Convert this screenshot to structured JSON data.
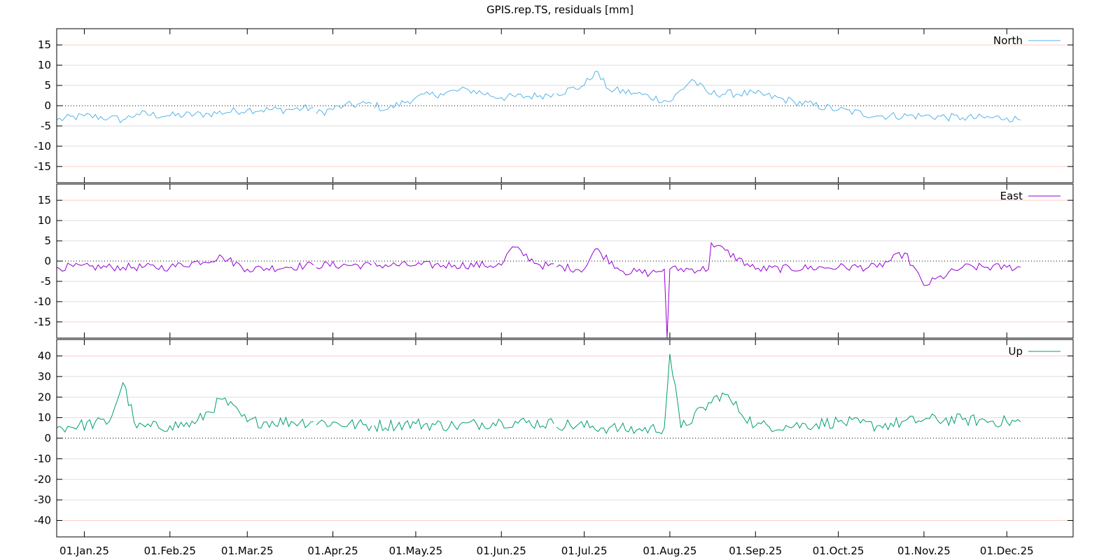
{
  "title": "GPIS.rep.TS, residuals [mm]",
  "chart_data": [
    {
      "type": "line",
      "name": "North",
      "series": [
        {
          "name": "North",
          "color": "#56b4e9"
        }
      ],
      "ylim": [
        -19,
        19
      ],
      "yticks": [
        15,
        10,
        5,
        0,
        -5,
        -10,
        -15
      ],
      "ytick_labels": [
        "15",
        "10",
        "5",
        "0",
        "-5",
        "-10",
        "-15"
      ],
      "red_grid": [
        15,
        -15
      ],
      "grey_grid": [
        10,
        5,
        -5,
        -10
      ],
      "key": [
        [
          "2024-12-22",
          -3.5
        ],
        [
          "2025-01-01",
          -2.5
        ],
        [
          "2025-01-10",
          -3.0
        ],
        [
          "2025-01-15",
          -3.5
        ],
        [
          "2025-01-20",
          -2.0
        ],
        [
          "2025-02-01",
          -2.5
        ],
        [
          "2025-02-15",
          -2.0
        ],
        [
          "2025-03-01",
          -1.0
        ],
        [
          "2025-03-15",
          -1.0
        ],
        [
          "2025-03-25",
          -0.5
        ],
        [
          "2025-03-26",
          -2.0
        ],
        [
          "2025-04-05",
          0.0
        ],
        [
          "2025-04-15",
          0.5
        ],
        [
          "2025-04-20",
          -1.0
        ],
        [
          "2025-05-01",
          2.0
        ],
        [
          "2025-05-10",
          3.0
        ],
        [
          "2025-05-20",
          4.0
        ],
        [
          "2025-06-01",
          2.0
        ],
        [
          "2025-06-15",
          2.5
        ],
        [
          "2025-06-20",
          3.0
        ],
        [
          "2025-06-21",
          3.0
        ],
        [
          "2025-07-01",
          5.0
        ],
        [
          "2025-07-05",
          8.5
        ],
        [
          "2025-07-10",
          4.0
        ],
        [
          "2025-07-20",
          3.0
        ],
        [
          "2025-08-01",
          1.0
        ],
        [
          "2025-08-09",
          6.5
        ],
        [
          "2025-08-15",
          3.0
        ],
        [
          "2025-09-01",
          3.0
        ],
        [
          "2025-09-15",
          1.0
        ],
        [
          "2025-10-01",
          -1.0
        ],
        [
          "2025-10-15",
          -2.5
        ],
        [
          "2025-11-01",
          -2.5
        ],
        [
          "2025-11-15",
          -3.0
        ],
        [
          "2025-12-01",
          -3.0
        ],
        [
          "2025-12-06",
          -3.5
        ]
      ],
      "gaps": [
        "2025-03-26",
        "2025-04-16",
        "2025-06-21"
      ]
    },
    {
      "type": "line",
      "name": "East",
      "series": [
        {
          "name": "East",
          "color": "#9400d3"
        }
      ],
      "ylim": [
        -19,
        19
      ],
      "yticks": [
        15,
        10,
        5,
        0,
        -5,
        -10,
        -15
      ],
      "ytick_labels": [
        "15",
        "10",
        "5",
        "0",
        "-5",
        "-10",
        "-15"
      ],
      "red_grid": [
        15,
        -15
      ],
      "grey_grid": [
        10,
        5,
        -5,
        -10
      ],
      "key": [
        [
          "2024-12-22",
          -1.5
        ],
        [
          "2025-01-15",
          -1.5
        ],
        [
          "2025-02-01",
          -1.5
        ],
        [
          "2025-02-20",
          1.0
        ],
        [
          "2025-03-01",
          -2.0
        ],
        [
          "2025-03-15",
          -1.5
        ],
        [
          "2025-03-25",
          -1.0
        ],
        [
          "2025-04-15",
          -1.0
        ],
        [
          "2025-05-01",
          -1.0
        ],
        [
          "2025-05-15",
          -1.0
        ],
        [
          "2025-06-01",
          -1.0
        ],
        [
          "2025-06-05",
          3.5
        ],
        [
          "2025-06-15",
          -1.0
        ],
        [
          "2025-07-01",
          -2.0
        ],
        [
          "2025-07-05",
          3.0
        ],
        [
          "2025-07-15",
          -2.5
        ],
        [
          "2025-07-25",
          -3.0
        ],
        [
          "2025-07-30",
          -2.0
        ],
        [
          "2025-07-31",
          -19.0
        ],
        [
          "2025-08-01",
          -2.0
        ],
        [
          "2025-08-15",
          -2.0
        ],
        [
          "2025-08-16",
          4.5
        ],
        [
          "2025-09-01",
          -2.0
        ],
        [
          "2025-10-01",
          -1.5
        ],
        [
          "2025-10-15",
          -1.5
        ],
        [
          "2025-10-25",
          2.0
        ],
        [
          "2025-11-01",
          -6.0
        ],
        [
          "2025-11-15",
          -1.5
        ],
        [
          "2025-12-01",
          -1.5
        ],
        [
          "2025-12-06",
          -1.5
        ]
      ],
      "gaps": [
        "2025-03-26",
        "2025-04-16",
        "2025-06-21"
      ]
    },
    {
      "type": "line",
      "name": "Up",
      "series": [
        {
          "name": "Up",
          "color": "#009e73"
        }
      ],
      "ylim": [
        -48,
        48
      ],
      "yticks": [
        40,
        30,
        20,
        10,
        0,
        -10,
        -20,
        -30,
        -40
      ],
      "ytick_labels": [
        "40",
        "30",
        "20",
        "10",
        "0",
        "-10",
        "-20",
        "-30",
        "-40"
      ],
      "red_grid": [
        40,
        -40
      ],
      "grey_grid": [
        30,
        20,
        10,
        -10,
        -20,
        -30
      ],
      "key": [
        [
          "2024-12-22",
          5
        ],
        [
          "2025-01-10",
          8
        ],
        [
          "2025-01-15",
          27
        ],
        [
          "2025-01-20",
          5
        ],
        [
          "2025-02-01",
          6
        ],
        [
          "2025-02-10",
          7
        ],
        [
          "2025-02-20",
          19
        ],
        [
          "2025-03-01",
          8
        ],
        [
          "2025-03-25",
          8
        ],
        [
          "2025-04-15",
          6
        ],
        [
          "2025-05-01",
          7
        ],
        [
          "2025-05-15",
          6
        ],
        [
          "2025-06-01",
          8
        ],
        [
          "2025-06-20",
          7
        ],
        [
          "2025-07-10",
          5
        ],
        [
          "2025-07-20",
          4
        ],
        [
          "2025-07-30",
          5
        ],
        [
          "2025-08-01",
          41
        ],
        [
          "2025-08-05",
          5
        ],
        [
          "2025-08-20",
          22
        ],
        [
          "2025-09-01",
          6
        ],
        [
          "2025-09-15",
          6
        ],
        [
          "2025-10-01",
          8
        ],
        [
          "2025-10-15",
          6
        ],
        [
          "2025-11-01",
          9
        ],
        [
          "2025-11-15",
          9
        ],
        [
          "2025-12-01",
          8
        ],
        [
          "2025-12-06",
          8
        ]
      ],
      "gaps": [
        "2025-03-26",
        "2025-04-16",
        "2025-06-21"
      ]
    }
  ],
  "xaxis": {
    "range": [
      "2024-12-22",
      "2025-12-25"
    ],
    "ticks": [
      "2025-01-01",
      "2025-02-01",
      "2025-03-01",
      "2025-04-01",
      "2025-05-01",
      "2025-06-01",
      "2025-07-01",
      "2025-08-01",
      "2025-09-01",
      "2025-10-01",
      "2025-11-01",
      "2025-12-01"
    ],
    "tick_labels": [
      "01.Jan.25",
      "01.Feb.25",
      "01.Mar.25",
      "01.Apr.25",
      "01.May.25",
      "01.Jun.25",
      "01.Jul.25",
      "01.Aug.25",
      "01.Sep.25",
      "01.Oct.25",
      "01.Nov.25",
      "01.Dec.25"
    ]
  },
  "legend": {
    "placement": "top-right"
  }
}
